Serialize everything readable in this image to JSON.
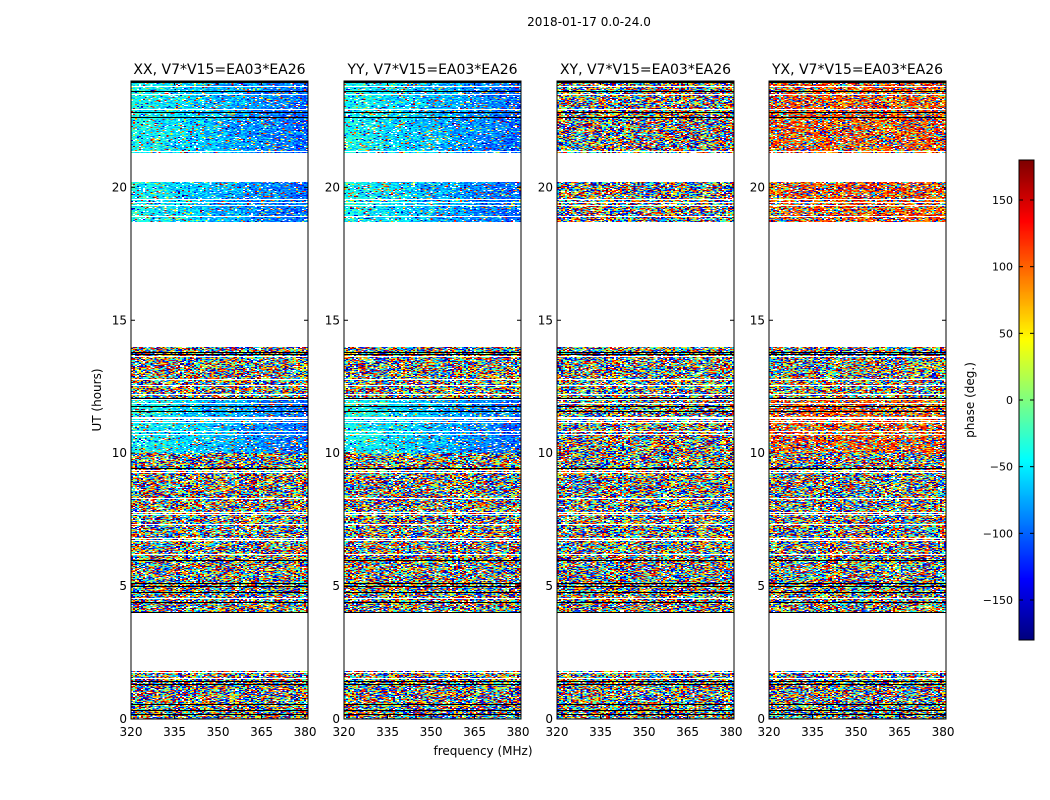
{
  "chart_data": {
    "type": "heatmap",
    "suptitle": "2018-01-17 0.0-24.0",
    "xlabel": "frequency (MHz)",
    "ylabel": "UT (hours)",
    "xlim": [
      320,
      381
    ],
    "ylim": [
      0,
      24
    ],
    "xticks": [
      320,
      335,
      350,
      365,
      380
    ],
    "yticks": [
      0,
      5,
      10,
      15,
      20
    ],
    "panels": [
      {
        "title": "XX, V7*V15=EA03*EA26",
        "pol": "XX"
      },
      {
        "title": "YY, V7*V15=EA03*EA26",
        "pol": "YY"
      },
      {
        "title": "XY, V7*V15=EA03*EA26",
        "pol": "XY"
      },
      {
        "title": "YX, V7*V15=EA03*EA26",
        "pol": "YX"
      }
    ],
    "data_blocks_ut_hours": [
      [
        0.0,
        1.8
      ],
      [
        4.0,
        14.0
      ],
      [
        18.7,
        20.2
      ],
      [
        21.3,
        24.0
      ]
    ],
    "flagged_gaps_ut_hours": [
      [
        1.8,
        4.0
      ],
      [
        14.0,
        18.7
      ],
      [
        20.2,
        21.3
      ]
    ],
    "colorbar": {
      "label": "phase (deg.)",
      "range": [
        -180,
        180
      ],
      "ticks": [
        -150,
        -100,
        -50,
        0,
        50,
        100,
        150
      ],
      "tick_labels": [
        "−150",
        "−100",
        "−50",
        "0",
        "50",
        "100",
        "150"
      ],
      "colormap": "jet"
    }
  }
}
